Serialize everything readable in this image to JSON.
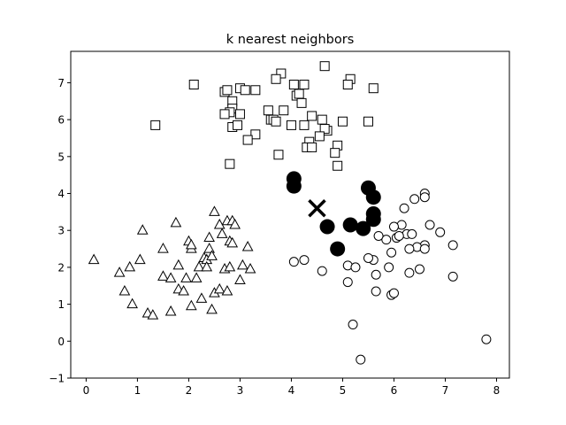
{
  "chart_data": {
    "type": "scatter",
    "title": "k nearest neighbors",
    "xlabel": "",
    "ylabel": "",
    "xlim": [
      -0.3,
      8.25
    ],
    "ylim": [
      -1.0,
      7.85
    ],
    "xticks": [
      0,
      1,
      2,
      3,
      4,
      5,
      6,
      7,
      8
    ],
    "yticks": [
      -1,
      0,
      1,
      2,
      3,
      4,
      5,
      6,
      7
    ],
    "grid": false,
    "series": [
      {
        "marker": "square",
        "points": [
          [
            2.1,
            6.95
          ],
          [
            3.8,
            7.25
          ],
          [
            3.7,
            7.1
          ],
          [
            4.65,
            7.45
          ],
          [
            5.15,
            7.1
          ],
          [
            5.1,
            6.95
          ],
          [
            5.6,
            6.85
          ],
          [
            4.05,
            6.95
          ],
          [
            4.25,
            6.95
          ],
          [
            2.7,
            6.75
          ],
          [
            2.75,
            6.8
          ],
          [
            3.0,
            6.85
          ],
          [
            3.1,
            6.8
          ],
          [
            3.3,
            6.8
          ],
          [
            4.1,
            6.65
          ],
          [
            4.15,
            6.7
          ],
          [
            4.2,
            6.45
          ],
          [
            2.85,
            6.5
          ],
          [
            2.85,
            6.3
          ],
          [
            2.8,
            6.2
          ],
          [
            2.7,
            6.15
          ],
          [
            3.0,
            6.15
          ],
          [
            3.55,
            6.25
          ],
          [
            3.85,
            6.25
          ],
          [
            4.4,
            6.1
          ],
          [
            3.6,
            6.0
          ],
          [
            3.65,
            6.0
          ],
          [
            3.7,
            5.95
          ],
          [
            4.6,
            6.0
          ],
          [
            5.0,
            5.95
          ],
          [
            5.5,
            5.95
          ],
          [
            4.0,
            5.85
          ],
          [
            4.25,
            5.85
          ],
          [
            4.7,
            5.7
          ],
          [
            4.65,
            5.75
          ],
          [
            1.35,
            5.85
          ],
          [
            2.85,
            5.8
          ],
          [
            2.95,
            5.85
          ],
          [
            3.3,
            5.6
          ],
          [
            3.15,
            5.45
          ],
          [
            4.55,
            5.55
          ],
          [
            4.35,
            5.4
          ],
          [
            4.3,
            5.25
          ],
          [
            4.4,
            5.25
          ],
          [
            4.9,
            5.3
          ],
          [
            4.85,
            5.1
          ],
          [
            3.75,
            5.05
          ],
          [
            2.8,
            4.8
          ],
          [
            4.9,
            4.75
          ]
        ]
      },
      {
        "marker": "triangle",
        "points": [
          [
            0.15,
            2.2
          ],
          [
            0.65,
            1.85
          ],
          [
            0.75,
            1.35
          ],
          [
            0.85,
            2.0
          ],
          [
            0.9,
            1.0
          ],
          [
            1.05,
            2.2
          ],
          [
            1.1,
            3.0
          ],
          [
            1.2,
            0.75
          ],
          [
            1.3,
            0.7
          ],
          [
            1.5,
            2.5
          ],
          [
            1.5,
            1.75
          ],
          [
            1.65,
            1.7
          ],
          [
            1.65,
            0.8
          ],
          [
            1.75,
            3.2
          ],
          [
            1.8,
            2.05
          ],
          [
            1.8,
            1.4
          ],
          [
            1.9,
            1.35
          ],
          [
            1.95,
            1.7
          ],
          [
            2.0,
            2.7
          ],
          [
            2.05,
            2.5
          ],
          [
            2.05,
            2.6
          ],
          [
            2.05,
            0.95
          ],
          [
            2.15,
            1.7
          ],
          [
            2.2,
            2.0
          ],
          [
            2.25,
            1.15
          ],
          [
            2.3,
            2.25
          ],
          [
            2.35,
            2.2
          ],
          [
            2.35,
            2.0
          ],
          [
            2.4,
            2.5
          ],
          [
            2.4,
            2.8
          ],
          [
            2.45,
            0.85
          ],
          [
            2.45,
            2.3
          ],
          [
            2.5,
            3.5
          ],
          [
            2.5,
            1.3
          ],
          [
            2.6,
            3.15
          ],
          [
            2.6,
            1.4
          ],
          [
            2.65,
            2.9
          ],
          [
            2.7,
            1.95
          ],
          [
            2.75,
            3.25
          ],
          [
            2.8,
            2.0
          ],
          [
            2.8,
            2.7
          ],
          [
            2.75,
            1.35
          ],
          [
            2.85,
            3.25
          ],
          [
            2.85,
            2.65
          ],
          [
            2.9,
            3.15
          ],
          [
            3.0,
            1.65
          ],
          [
            3.05,
            2.05
          ],
          [
            3.15,
            2.55
          ],
          [
            3.2,
            1.95
          ]
        ]
      },
      {
        "marker": "circle",
        "points": [
          [
            6.6,
            4.0
          ],
          [
            6.6,
            3.9
          ],
          [
            6.4,
            3.85
          ],
          [
            6.2,
            3.6
          ],
          [
            6.7,
            3.15
          ],
          [
            6.15,
            3.15
          ],
          [
            6.0,
            3.1
          ],
          [
            6.25,
            2.9
          ],
          [
            6.35,
            2.9
          ],
          [
            6.05,
            2.8
          ],
          [
            6.1,
            2.85
          ],
          [
            6.9,
            2.95
          ],
          [
            5.85,
            2.75
          ],
          [
            5.7,
            2.85
          ],
          [
            6.6,
            2.6
          ],
          [
            6.45,
            2.55
          ],
          [
            6.3,
            2.5
          ],
          [
            6.6,
            2.5
          ],
          [
            7.15,
            2.6
          ],
          [
            5.95,
            2.4
          ],
          [
            5.6,
            2.2
          ],
          [
            5.5,
            2.25
          ],
          [
            4.05,
            2.15
          ],
          [
            4.25,
            2.2
          ],
          [
            5.1,
            2.05
          ],
          [
            5.25,
            2.0
          ],
          [
            5.9,
            2.0
          ],
          [
            4.6,
            1.9
          ],
          [
            6.5,
            1.95
          ],
          [
            6.3,
            1.85
          ],
          [
            5.65,
            1.8
          ],
          [
            7.15,
            1.75
          ],
          [
            5.1,
            1.6
          ],
          [
            5.65,
            1.35
          ],
          [
            5.95,
            1.25
          ],
          [
            6.0,
            1.3
          ],
          [
            5.2,
            0.45
          ],
          [
            7.8,
            0.05
          ],
          [
            5.35,
            -0.5
          ]
        ]
      }
    ],
    "neighbors": [
      [
        4.05,
        4.4
      ],
      [
        4.05,
        4.2
      ],
      [
        5.5,
        4.15
      ],
      [
        5.6,
        3.9
      ],
      [
        5.6,
        3.45
      ],
      [
        5.6,
        3.3
      ],
      [
        5.15,
        3.15
      ],
      [
        5.4,
        3.05
      ],
      [
        4.7,
        3.1
      ],
      [
        4.9,
        2.5
      ]
    ],
    "query_point": [
      4.5,
      3.6
    ]
  }
}
